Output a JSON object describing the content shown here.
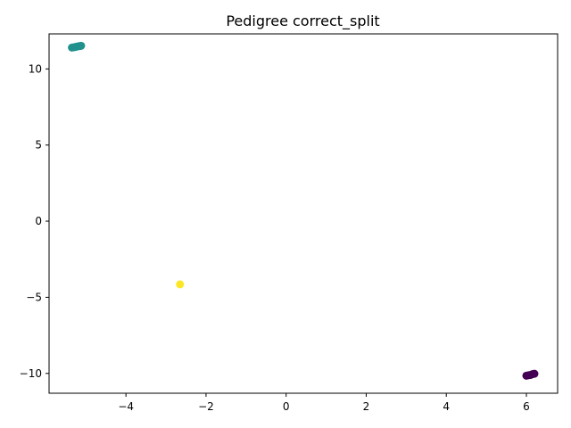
{
  "chart_data": {
    "type": "scatter",
    "title": "Pedigree correct_split",
    "xlabel": "",
    "ylabel": "",
    "xlim": [
      -5.92,
      6.78
    ],
    "ylim": [
      -11.3,
      12.3
    ],
    "xticks": [
      -4,
      -2,
      0,
      2,
      4,
      6
    ],
    "xtick_labels": [
      "−4",
      "−2",
      "0",
      "2",
      "4",
      "6"
    ],
    "yticks": [
      -10,
      -5,
      0,
      5,
      10
    ],
    "ytick_labels": [
      "−10",
      "−5",
      "0",
      "5",
      "10"
    ],
    "grid": false,
    "legend": "none",
    "series": [
      {
        "color": "#21918c",
        "points": [
          {
            "x": -5.35,
            "y": 11.4
          },
          {
            "x": -5.3,
            "y": 11.42
          },
          {
            "x": -5.25,
            "y": 11.45
          },
          {
            "x": -5.2,
            "y": 11.48
          },
          {
            "x": -5.15,
            "y": 11.5
          },
          {
            "x": -5.12,
            "y": 11.52
          }
        ]
      },
      {
        "color": "#fde725",
        "points": [
          {
            "x": -2.65,
            "y": -4.15
          }
        ]
      },
      {
        "color": "#440154",
        "points": [
          {
            "x": 6.0,
            "y": -10.15
          },
          {
            "x": 6.05,
            "y": -10.12
          },
          {
            "x": 6.1,
            "y": -10.1
          },
          {
            "x": 6.15,
            "y": -10.05
          },
          {
            "x": 6.2,
            "y": -10.02
          }
        ]
      }
    ]
  }
}
